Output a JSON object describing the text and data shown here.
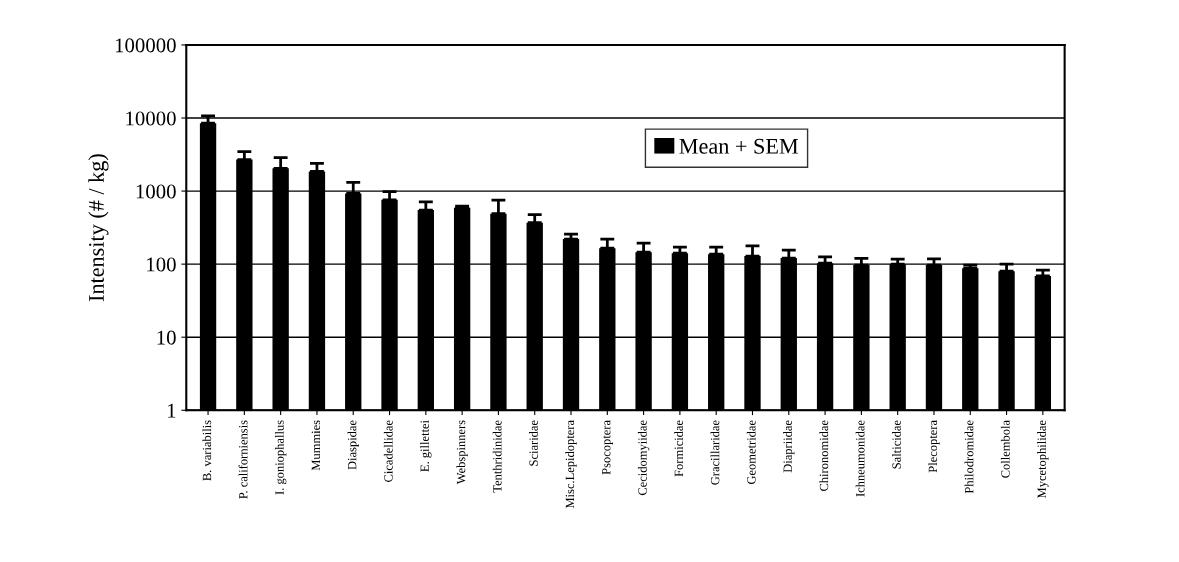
{
  "chart_data": {
    "type": "bar",
    "ylabel": "Intensity (# / kg)",
    "categories": [
      "B. variabilis",
      "P. californiensis",
      "I. goniophallus",
      "Mummies",
      "Diaspidae",
      "Cicadellidae",
      "E. gillettei",
      "Webspinners",
      "Tenthridinidae",
      "Sciaridae",
      "Misc.Lepidoptera",
      "Psocoptera",
      "Cecidomyiidae",
      "Formicidae",
      "Gracillaridae",
      "Geometridae",
      "Diapriidae",
      "Chironomidae",
      "Ichneumonidae",
      "Salticidae",
      "Plecoptera",
      "Philodromidae",
      "Collembola",
      "Mycetophilidae"
    ],
    "series": [
      {
        "name": "Mean + SEM",
        "color": "#000000",
        "values": [
          8500,
          2700,
          2050,
          1860,
          930,
          760,
          550,
          590,
          490,
          370,
          220,
          165,
          146,
          141,
          137,
          129,
          121,
          103,
          97,
          100,
          97,
          88,
          80,
          69
        ],
        "errors": [
          [
            8500,
            10700
          ],
          [
            2700,
            3470
          ],
          [
            2050,
            2880
          ],
          [
            1860,
            2400
          ],
          [
            930,
            1320
          ],
          [
            760,
            980
          ],
          [
            550,
            710
          ],
          [
            590,
            620
          ],
          [
            490,
            750
          ],
          [
            370,
            475
          ],
          [
            220,
            257
          ],
          [
            165,
            220
          ],
          [
            146,
            194
          ],
          [
            141,
            171
          ],
          [
            137,
            171
          ],
          [
            129,
            178
          ],
          [
            121,
            155
          ],
          [
            103,
            126
          ],
          [
            97,
            120
          ],
          [
            100,
            117
          ],
          [
            97,
            118
          ],
          [
            88,
            97
          ],
          [
            80,
            100
          ],
          [
            69,
            83
          ]
        ]
      }
    ],
    "log": true,
    "ylim": [
      1,
      100000
    ],
    "yticks": [
      1,
      10,
      100,
      1000,
      10000,
      100000
    ],
    "grid": "y",
    "legend": "top right"
  }
}
